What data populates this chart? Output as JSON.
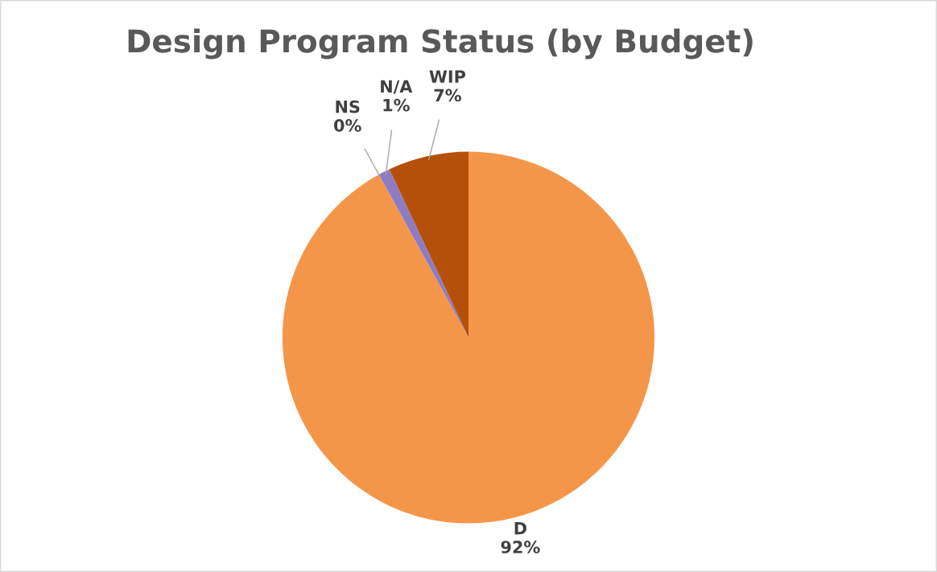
{
  "chart_data": {
    "type": "pie",
    "title": "Design Program Status (by Budget)",
    "categories": [
      "D",
      "NS",
      "N/A",
      "WIP"
    ],
    "values": [
      92,
      0,
      1,
      7
    ],
    "colors": [
      "#f4964a",
      "#a5a5a5",
      "#8e7cc3",
      "#b5500b"
    ],
    "value_labels": [
      "92%",
      "0%",
      "1%",
      "7%"
    ]
  }
}
